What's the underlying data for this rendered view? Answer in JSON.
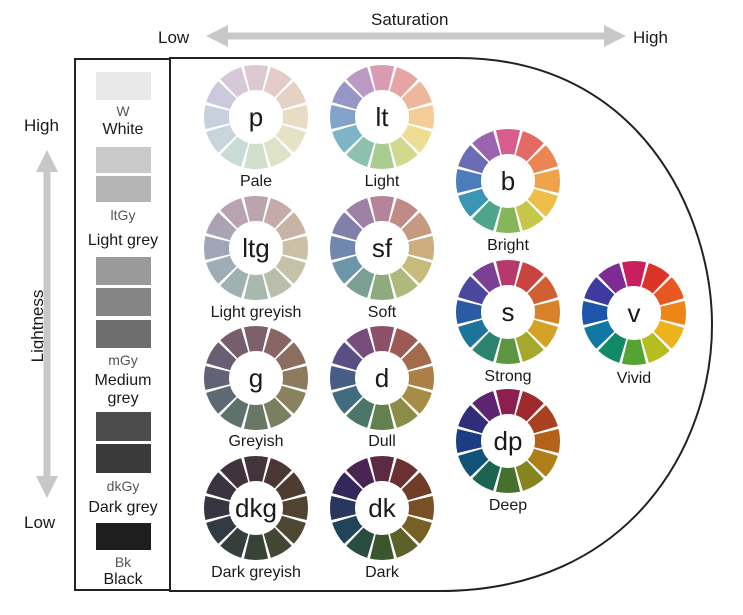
{
  "saturation_axis": {
    "title": "Saturation",
    "low": "Low",
    "high": "High",
    "arrow_color": "#c8c8c8"
  },
  "lightness_axis": {
    "title": "Lightness",
    "high": "High",
    "low": "Low",
    "arrow_color": "#c8c8c8"
  },
  "greys": [
    {
      "code": "W",
      "name": "White",
      "swatch_colors": [
        "#e9e9e9"
      ]
    },
    {
      "code": "ltGy",
      "name": "Light grey",
      "swatch_colors": [
        "#c9c9c9",
        "#b4b4b4"
      ]
    },
    {
      "code": "mGy",
      "name": "Medium grey",
      "swatch_colors": [
        "#9a9a9a",
        "#858585",
        "#6e6e6e"
      ]
    },
    {
      "code": "dkGy",
      "name": "Dark grey",
      "swatch_colors": [
        "#4c4c4c",
        "#3a3a3a"
      ]
    },
    {
      "code": "Bk",
      "name": "Black",
      "swatch_colors": [
        "#1e1e1e"
      ]
    }
  ],
  "tones": [
    {
      "abbr": "p",
      "name": "Pale",
      "colors": [
        "#dcc9cf",
        "#e2cbc8",
        "#e6d2c5",
        "#e8dcc4",
        "#e6e2c6",
        "#dde2c8",
        "#d1dfcc",
        "#c9dbd5",
        "#c8d6dc",
        "#c7d0dd",
        "#cbcadd",
        "#d6c8d8"
      ]
    },
    {
      "abbr": "lt",
      "name": "Light",
      "colors": [
        "#d99ab4",
        "#e6a4a2",
        "#eeb79c",
        "#f3cd95",
        "#eedd92",
        "#d2d98e",
        "#a9cc92",
        "#8dc1ae",
        "#7eb5c6",
        "#83a3cb",
        "#9797c7",
        "#ba99c2"
      ]
    },
    {
      "abbr": "ltg",
      "name": "Light greyish",
      "colors": [
        "#bba4ad",
        "#c4aaa8",
        "#c8b3a7",
        "#cbbfa6",
        "#c6c2a7",
        "#b8bea9",
        "#a7b8ac",
        "#9fb2b1",
        "#9fadb6",
        "#a1a6b6",
        "#aaa3b4",
        "#b7a3b1"
      ]
    },
    {
      "abbr": "sf",
      "name": "Soft",
      "colors": [
        "#b4849a",
        "#c08b86",
        "#c69a80",
        "#cbae7c",
        "#c7bb7b",
        "#afb97b",
        "#8eab7f",
        "#7aa096",
        "#6d96a8",
        "#7187ad",
        "#8180ab",
        "#9c80a5"
      ]
    },
    {
      "abbr": "g",
      "name": "Greyish",
      "colors": [
        "#7c606c",
        "#876562",
        "#8b6e60",
        "#8e7a5f",
        "#8a825f",
        "#7b7f60",
        "#687865",
        "#5f716d",
        "#5d6a74",
        "#616275",
        "#6a5e73",
        "#765e6f"
      ]
    },
    {
      "abbr": "d",
      "name": "Dull",
      "colors": [
        "#8c5068",
        "#9d5a55",
        "#a46a4c",
        "#ac7f46",
        "#a78c45",
        "#8a8c48",
        "#63804f",
        "#4b7668",
        "#3f6c7f",
        "#485d86",
        "#594f83",
        "#774d7c"
      ]
    },
    {
      "abbr": "dkg",
      "name": "Dark greyish",
      "colors": [
        "#43333a",
        "#4b3634",
        "#4e3c33",
        "#504332",
        "#4d4833",
        "#444634",
        "#394237",
        "#343e3c",
        "#333a41",
        "#353641",
        "#3a3340",
        "#41333d"
      ]
    },
    {
      "abbr": "dk",
      "name": "Dark",
      "colors": [
        "#5c2b41",
        "#6a3130",
        "#713c28",
        "#7a4f23",
        "#766023",
        "#5c6127",
        "#3b562d",
        "#294d41",
        "#224458",
        "#29365e",
        "#34285b",
        "#4a2553"
      ]
    },
    {
      "abbr": "b",
      "name": "Bright",
      "colors": [
        "#d85c8c",
        "#e36a64",
        "#ec8554",
        "#f1a34c",
        "#eebf48",
        "#c6c64b",
        "#86b55a",
        "#4ea58a",
        "#3a96b3",
        "#4b7dbb",
        "#6c6cb6",
        "#9b64ae"
      ]
    },
    {
      "abbr": "s",
      "name": "Strong",
      "colors": [
        "#b7396c",
        "#c8443f",
        "#d15f32",
        "#d98229",
        "#d4a228",
        "#a5a82c",
        "#5e9540",
        "#2c8470",
        "#1d749a",
        "#2b5ba4",
        "#4b479d",
        "#7b3f93"
      ]
    },
    {
      "abbr": "v",
      "name": "Vivid",
      "colors": [
        "#c91f5e",
        "#dc3328",
        "#e8571f",
        "#ef8419",
        "#ecb41a",
        "#b6bd1e",
        "#57a234",
        "#128a68",
        "#0f78a3",
        "#1d55ab",
        "#3f3a9f",
        "#7c2c93"
      ]
    },
    {
      "abbr": "dp",
      "name": "Deep",
      "colors": [
        "#8c1f4d",
        "#9e2a2d",
        "#a94020",
        "#b4611a",
        "#ae7f18",
        "#85851d",
        "#45702d",
        "#1c6352",
        "#125478",
        "#1a3d85",
        "#302d7b",
        "#5d2570"
      ]
    }
  ]
}
